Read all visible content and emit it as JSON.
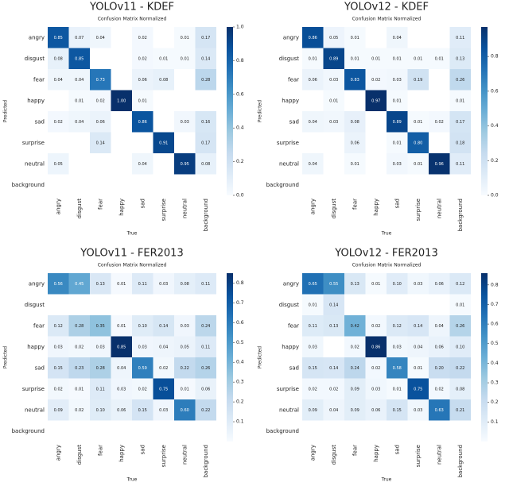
{
  "chart_data": [
    {
      "type": "heatmap",
      "title": "YOLOv11 - KDEF",
      "subtitle": "Confusion Matrix Normalized",
      "xlabel": "True",
      "ylabel": "Predicted",
      "categories": [
        "angry",
        "disgust",
        "fear",
        "happy",
        "sad",
        "surprise",
        "neutral",
        "background"
      ],
      "colormap": "Blues",
      "clim": [
        0,
        1
      ],
      "cticks": [
        {
          "value": 0,
          "label": "0.0"
        },
        0.2,
        0.4,
        0.6,
        0.8,
        {
          "value": 1,
          "label": "1.0"
        }
      ],
      "values": [
        [
          0.85,
          0.07,
          0.04,
          null,
          0.02,
          null,
          0.01,
          0.17
        ],
        [
          0.08,
          0.85,
          null,
          null,
          0.02,
          0.01,
          0.01,
          0.14
        ],
        [
          0.04,
          0.04,
          0.73,
          null,
          0.06,
          0.08,
          null,
          0.28
        ],
        [
          null,
          0.01,
          0.02,
          1,
          0.01,
          null,
          null,
          null
        ],
        [
          0.02,
          0.04,
          0.06,
          null,
          0.86,
          null,
          0.03,
          0.16
        ],
        [
          null,
          null,
          0.14,
          null,
          null,
          0.91,
          null,
          0.17
        ],
        [
          0.05,
          null,
          null,
          null,
          0.04,
          null,
          0.95,
          0.08
        ],
        [
          null,
          null,
          null,
          null,
          null,
          null,
          null,
          null
        ]
      ],
      "value_labels": [
        [
          "0.85",
          "0.07",
          "0.04",
          null,
          "0.02",
          null,
          "0.01",
          "0.17"
        ],
        [
          "0.08",
          "0.85",
          null,
          null,
          "0.02",
          "0.01",
          "0.01",
          "0.14"
        ],
        [
          "0.04",
          "0.04",
          "0.73",
          null,
          "0.06",
          "0.08",
          null,
          "0.28"
        ],
        [
          null,
          "0.01",
          "0.02",
          "1.00",
          "0.01",
          null,
          null,
          null
        ],
        [
          "0.02",
          "0.04",
          "0.06",
          null,
          "0.86",
          null,
          "0.03",
          "0.16"
        ],
        [
          null,
          null,
          "0.14",
          null,
          null,
          "0.91",
          null,
          "0.17"
        ],
        [
          "0.05",
          null,
          null,
          null,
          "0.04",
          null,
          "0.95",
          "0.08"
        ],
        [
          null,
          null,
          null,
          null,
          null,
          null,
          null,
          null
        ]
      ]
    },
    {
      "type": "heatmap",
      "title": "YOLOv12 - KDEF",
      "subtitle": "Confusion Matrix Normalized",
      "xlabel": "True",
      "ylabel": "Predicted",
      "categories": [
        "angry",
        "disgust",
        "fear",
        "happy",
        "sad",
        "surprise",
        "neutral",
        "background"
      ],
      "colormap": "Blues",
      "clim": [
        0,
        0.97
      ],
      "cticks": [
        {
          "value": 0,
          "label": "0.0"
        },
        0.2,
        0.4,
        0.6,
        0.8
      ],
      "values": [
        [
          0.86,
          0.05,
          0.01,
          null,
          0.04,
          null,
          null,
          0.11
        ],
        [
          0.01,
          0.89,
          0.01,
          0.01,
          0.01,
          0.01,
          0.01,
          0.13
        ],
        [
          0.06,
          0.03,
          0.83,
          0.02,
          0.03,
          0.19,
          null,
          0.26
        ],
        [
          null,
          0.01,
          null,
          0.97,
          0.01,
          null,
          null,
          0.01
        ],
        [
          0.04,
          0.03,
          0.08,
          null,
          0.89,
          0.01,
          0.02,
          0.17
        ],
        [
          null,
          null,
          0.06,
          null,
          0.01,
          0.8,
          null,
          0.18
        ],
        [
          0.04,
          null,
          0.01,
          null,
          0.03,
          0.01,
          0.96,
          0.11
        ],
        [
          null,
          null,
          null,
          null,
          null,
          null,
          null,
          null
        ]
      ],
      "value_labels": [
        [
          "0.86",
          "0.05",
          "0.01",
          null,
          "0.04",
          null,
          null,
          "0.11"
        ],
        [
          "0.01",
          "0.89",
          "0.01",
          "0.01",
          "0.01",
          "0.01",
          "0.01",
          "0.13"
        ],
        [
          "0.06",
          "0.03",
          "0.83",
          "0.02",
          "0.03",
          "0.19",
          null,
          "0.26"
        ],
        [
          null,
          "0.01",
          null,
          "0.97",
          "0.01",
          null,
          null,
          "0.01"
        ],
        [
          "0.04",
          "0.03",
          "0.08",
          null,
          "0.89",
          "0.01",
          "0.02",
          "0.17"
        ],
        [
          null,
          null,
          "0.06",
          null,
          "0.01",
          "0.80",
          null,
          "0.18"
        ],
        [
          "0.04",
          null,
          "0.01",
          null,
          "0.03",
          "0.01",
          "0.96",
          "0.11"
        ],
        [
          null,
          null,
          null,
          null,
          null,
          null,
          null,
          null
        ]
      ]
    },
    {
      "type": "heatmap",
      "title": "YOLOv11 - FER2013",
      "subtitle": "Confusion Matrix Normalized",
      "xlabel": "True",
      "ylabel": "Predicted",
      "categories": [
        "angry",
        "disgust",
        "fear",
        "happy",
        "sad",
        "surprise",
        "neutral",
        "background"
      ],
      "colormap": "Blues",
      "clim": [
        0,
        0.85
      ],
      "cticks": [
        0.1,
        0.2,
        0.3,
        0.4,
        0.5,
        0.6,
        0.7,
        0.8
      ],
      "values": [
        [
          0.56,
          0.45,
          0.13,
          0.01,
          0.11,
          0.03,
          0.08,
          0.11
        ],
        [
          null,
          null,
          null,
          null,
          null,
          null,
          null,
          null
        ],
        [
          0.12,
          0.28,
          0.35,
          0.01,
          0.1,
          0.14,
          0.03,
          0.24
        ],
        [
          0.03,
          0.02,
          0.03,
          0.85,
          0.03,
          0.04,
          0.05,
          0.11
        ],
        [
          0.15,
          0.23,
          0.28,
          0.04,
          0.59,
          0.02,
          0.22,
          0.26
        ],
        [
          0.02,
          0.01,
          0.11,
          0.03,
          0.02,
          0.75,
          0.01,
          0.06
        ],
        [
          0.09,
          0.02,
          0.1,
          0.06,
          0.15,
          0.03,
          0.6,
          0.22
        ],
        [
          null,
          null,
          null,
          null,
          null,
          null,
          null,
          null
        ]
      ],
      "value_labels": [
        [
          "0.56",
          "0.45",
          "0.13",
          "0.01",
          "0.11",
          "0.03",
          "0.08",
          "0.11"
        ],
        [
          null,
          null,
          null,
          null,
          null,
          null,
          null,
          null
        ],
        [
          "0.12",
          "0.28",
          "0.35",
          "0.01",
          "0.10",
          "0.14",
          "0.03",
          "0.24"
        ],
        [
          "0.03",
          "0.02",
          "0.03",
          "0.85",
          "0.03",
          "0.04",
          "0.05",
          "0.11"
        ],
        [
          "0.15",
          "0.23",
          "0.28",
          "0.04",
          "0.59",
          "0.02",
          "0.22",
          "0.26"
        ],
        [
          "0.02",
          "0.01",
          "0.11",
          "0.03",
          "0.02",
          "0.75",
          "0.01",
          "0.06"
        ],
        [
          "0.09",
          "0.02",
          "0.10",
          "0.06",
          "0.15",
          "0.03",
          "0.60",
          "0.22"
        ],
        [
          null,
          null,
          null,
          null,
          null,
          null,
          null,
          null
        ]
      ]
    },
    {
      "type": "heatmap",
      "title": "YOLOv12 - FER2013",
      "subtitle": "Confusion Matrix Normalized",
      "xlabel": "True",
      "ylabel": "Predicted",
      "categories": [
        "angry",
        "disgust",
        "fear",
        "happy",
        "sad",
        "surprise",
        "neutral",
        "background"
      ],
      "colormap": "Blues",
      "clim": [
        0,
        0.86
      ],
      "cticks": [
        0.1,
        0.2,
        0.3,
        0.4,
        0.5,
        0.6,
        0.7,
        0.8
      ],
      "values": [
        [
          0.65,
          0.55,
          0.13,
          0.01,
          0.1,
          0.03,
          0.06,
          0.12
        ],
        [
          0.01,
          0.14,
          null,
          null,
          null,
          null,
          null,
          0.01
        ],
        [
          0.11,
          0.13,
          0.42,
          0.02,
          0.12,
          0.14,
          0.04,
          0.26
        ],
        [
          0.03,
          null,
          0.02,
          0.86,
          0.03,
          0.04,
          0.06,
          0.1
        ],
        [
          0.15,
          0.14,
          0.24,
          0.02,
          0.58,
          0.01,
          0.2,
          0.22
        ],
        [
          0.02,
          0.02,
          0.09,
          0.03,
          0.01,
          0.75,
          0.02,
          0.08
        ],
        [
          0.09,
          0.04,
          0.09,
          0.06,
          0.15,
          0.03,
          0.63,
          0.21
        ],
        [
          null,
          null,
          null,
          null,
          null,
          null,
          null,
          null
        ]
      ],
      "value_labels": [
        [
          "0.65",
          "0.55",
          "0.13",
          "0.01",
          "0.10",
          "0.03",
          "0.06",
          "0.12"
        ],
        [
          "0.01",
          "0.14",
          null,
          null,
          null,
          null,
          null,
          "0.01"
        ],
        [
          "0.11",
          "0.13",
          "0.42",
          "0.02",
          "0.12",
          "0.14",
          "0.04",
          "0.26"
        ],
        [
          "0.03",
          null,
          "0.02",
          "0.86",
          "0.03",
          "0.04",
          "0.06",
          "0.10"
        ],
        [
          "0.15",
          "0.14",
          "0.24",
          "0.02",
          "0.58",
          "0.01",
          "0.20",
          "0.22"
        ],
        [
          "0.02",
          "0.02",
          "0.09",
          "0.03",
          "0.01",
          "0.75",
          "0.02",
          "0.08"
        ],
        [
          "0.09",
          "0.04",
          "0.09",
          "0.06",
          "0.15",
          "0.03",
          "0.63",
          "0.21"
        ],
        [
          null,
          null,
          null,
          null,
          null,
          null,
          null,
          null
        ]
      ]
    }
  ]
}
